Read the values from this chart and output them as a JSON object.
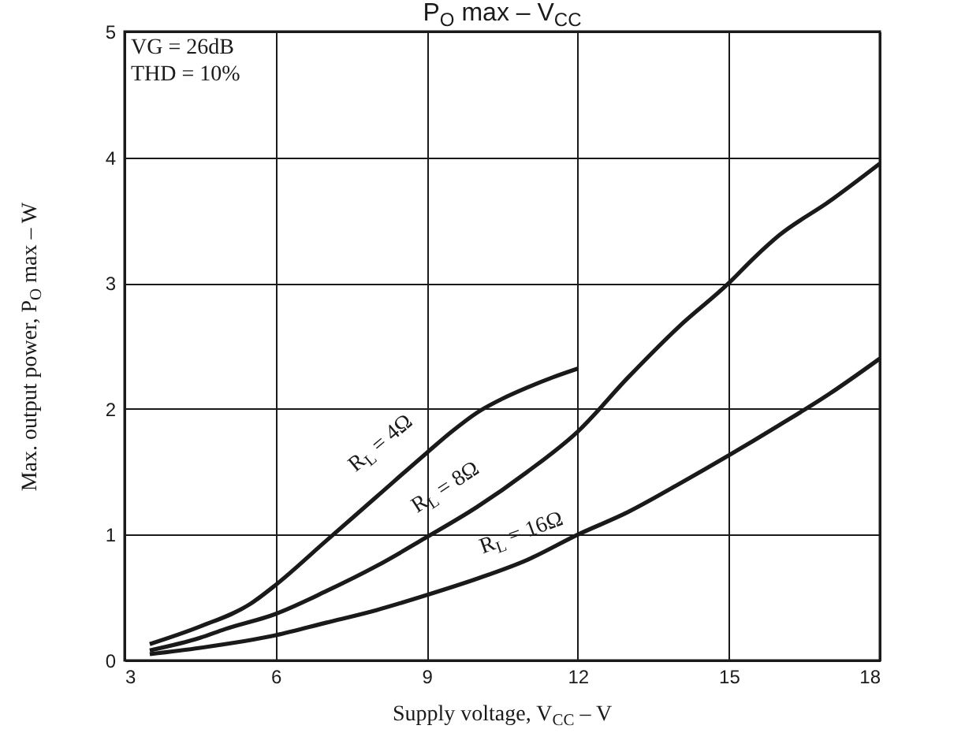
{
  "chart_data": {
    "type": "line",
    "title": "P$_{O}$ max  –  V$_{CC}$",
    "xlabel": "Supply voltage, V$_{CC}$  –  V",
    "ylabel": "Max. output power, P$_{O}$ max  –  W",
    "annotations": [
      "VG = 26dB",
      "THD = 10%"
    ],
    "xlim": [
      3,
      18
    ],
    "xticks": [
      3,
      6,
      9,
      12,
      15,
      18
    ],
    "ylim": [
      0,
      5
    ],
    "yticks": [
      0,
      1,
      2,
      3,
      4,
      5
    ],
    "grid": true,
    "legend": false,
    "line_style": "solid",
    "series": [
      {
        "name": "R$_{L}$ = 4Ω",
        "color": "#1a1a1a",
        "x": [
          3.5,
          4.5,
          5.5,
          6,
          7,
          8,
          9,
          9.5,
          10,
          10.5,
          11,
          11.5,
          12
        ],
        "values": [
          0.13,
          0.27,
          0.45,
          0.6,
          0.95,
          1.3,
          1.65,
          1.82,
          1.97,
          2.08,
          2.17,
          2.25,
          2.32
        ]
      },
      {
        "name": "R$_{L}$ = 8Ω",
        "color": "#1a1a1a",
        "x": [
          3.5,
          4.5,
          5,
          6,
          7,
          8,
          9,
          10,
          11,
          12,
          13,
          14,
          15,
          15.5,
          16,
          17,
          18
        ],
        "values": [
          0.08,
          0.18,
          0.25,
          0.37,
          0.55,
          0.75,
          0.98,
          1.22,
          1.5,
          1.82,
          2.25,
          2.65,
          3.0,
          3.2,
          3.38,
          3.65,
          3.95
        ]
      },
      {
        "name": "R$_{L}$ = 16Ω",
        "color": "#1a1a1a",
        "x": [
          3.5,
          4.5,
          6,
          7,
          8,
          9,
          10,
          11,
          12,
          13,
          14,
          15,
          16,
          17,
          18
        ],
        "values": [
          0.05,
          0.1,
          0.2,
          0.3,
          0.4,
          0.52,
          0.65,
          0.8,
          1.0,
          1.18,
          1.4,
          1.63,
          1.87,
          2.12,
          2.4
        ]
      }
    ]
  }
}
